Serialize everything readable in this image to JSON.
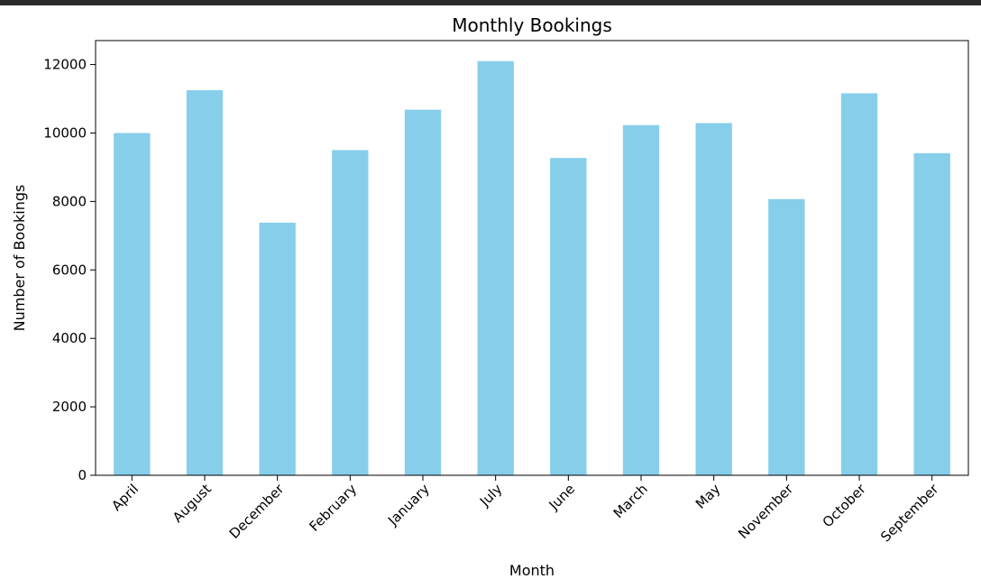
{
  "chart_data": {
    "type": "bar",
    "title": "Monthly Bookings",
    "xlabel": "Month",
    "ylabel": "Number of Bookings",
    "categories": [
      "April",
      "August",
      "December",
      "February",
      "January",
      "July",
      "June",
      "March",
      "May",
      "November",
      "October",
      "September"
    ],
    "values": [
      10000,
      11250,
      7380,
      9500,
      10680,
      12100,
      9270,
      10230,
      10290,
      8070,
      11160,
      9410
    ],
    "ylim": [
      0,
      12700
    ],
    "yticks": [
      0,
      2000,
      4000,
      6000,
      8000,
      10000,
      12000
    ],
    "bar_color": "#87ceeb",
    "grid": false,
    "legend": "none"
  }
}
